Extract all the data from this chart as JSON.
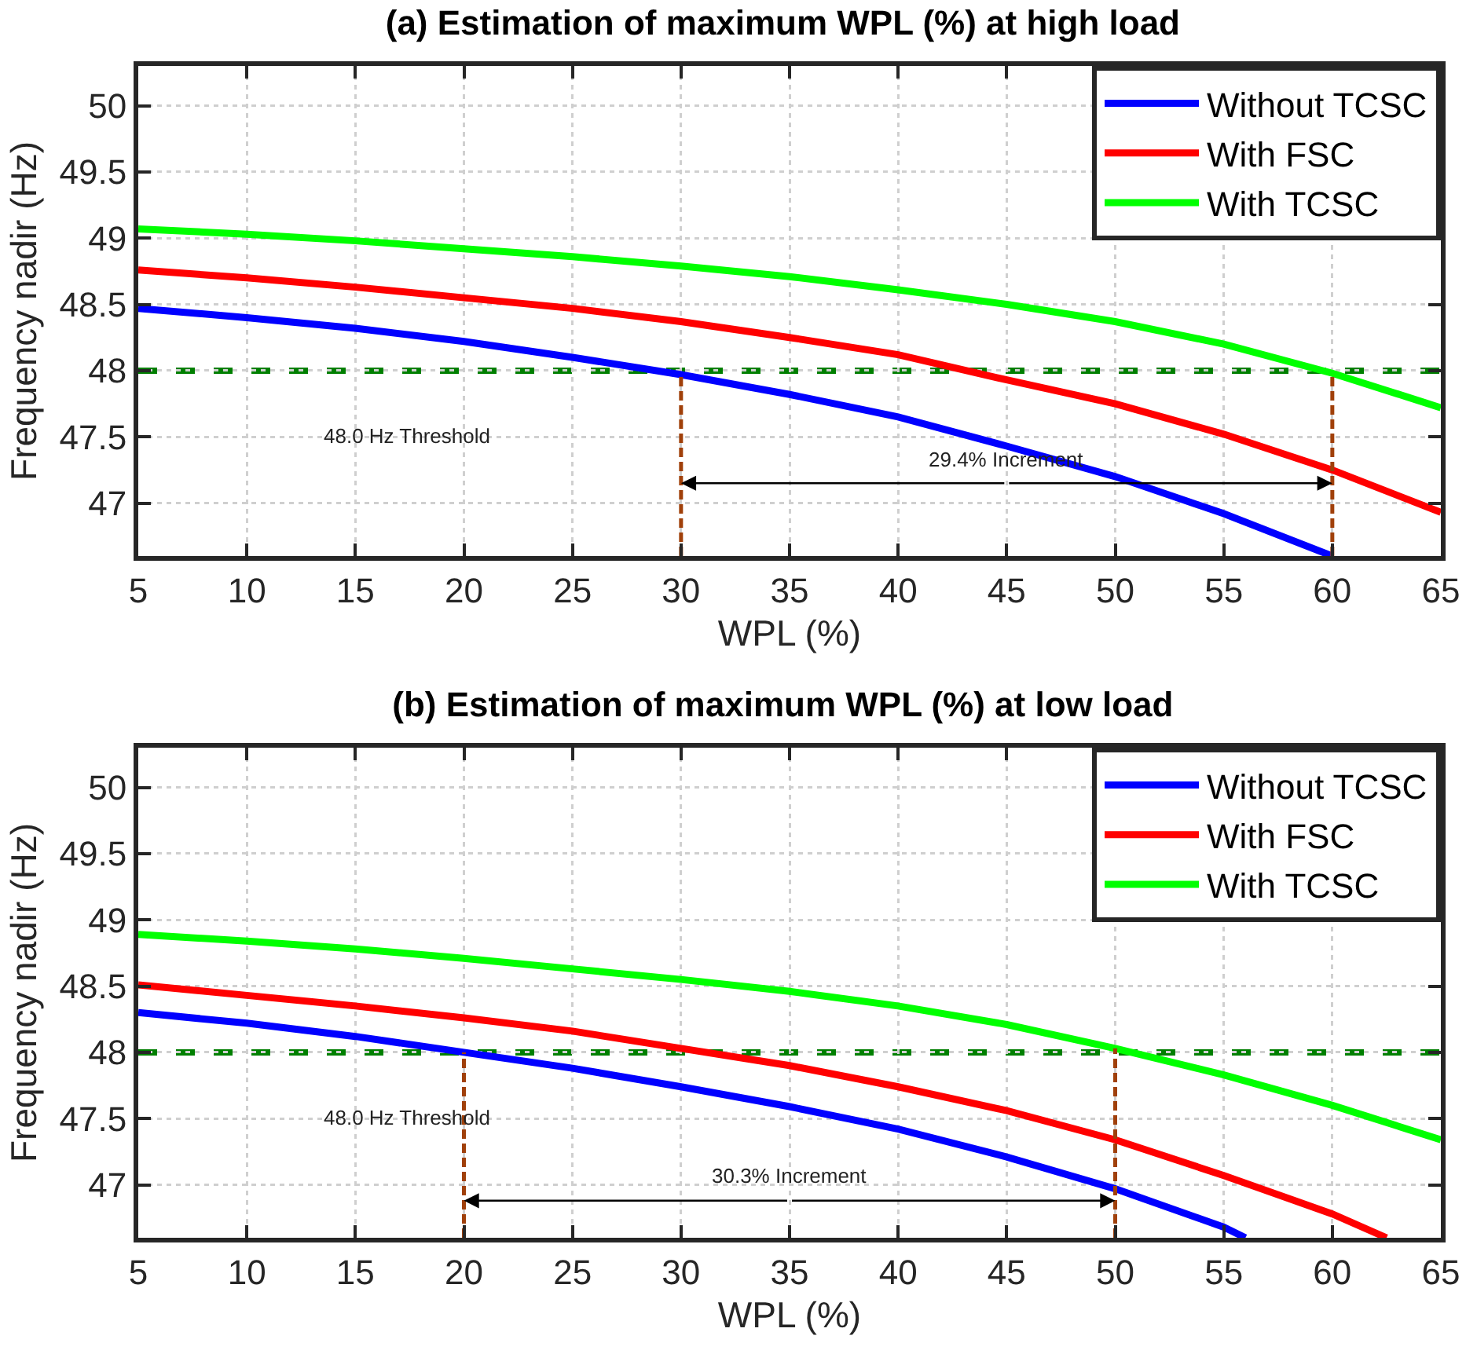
{
  "chart_data": [
    {
      "type": "line",
      "title": "(a) Estimation of maximum WPL (%) at high load",
      "xlabel": "WPL (%)",
      "ylabel": "Frequency nadir (Hz)",
      "x": [
        5,
        10,
        15,
        20,
        25,
        30,
        35,
        40,
        45,
        50,
        55,
        60,
        65
      ],
      "series": [
        {
          "name": "Without TCSC",
          "color": "#0000ff",
          "values": [
            48.47,
            48.4,
            48.32,
            48.22,
            48.1,
            47.97,
            47.82,
            47.65,
            47.43,
            47.2,
            46.92,
            46.6,
            null
          ]
        },
        {
          "name": "With FSC",
          "color": "#ff0000",
          "values": [
            48.76,
            48.7,
            48.63,
            48.55,
            48.47,
            48.37,
            48.25,
            48.12,
            47.93,
            47.75,
            47.52,
            47.25,
            46.93
          ]
        },
        {
          "name": "With TCSC",
          "color": "#00ff00",
          "values": [
            49.07,
            49.03,
            48.98,
            48.92,
            48.86,
            48.79,
            48.71,
            48.61,
            48.5,
            48.37,
            48.2,
            47.98,
            47.72
          ]
        },
        {
          "type": "line",
          "color": "#a0400a",
          "line_style": "dashed",
          "x": [
            30,
            30
          ],
          "values": [
            46.6,
            47.97
          ]
        },
        {
          "type": "line",
          "color": "#a0400a",
          "line_style": "dashed",
          "x": [
            60,
            60
          ],
          "values": [
            46.6,
            47.98
          ]
        }
      ],
      "ref_lines": [
        {
          "axis": "y",
          "value": 48,
          "color": "#007f00",
          "line_style": "dashed"
        }
      ],
      "annotations": [
        "48.0 Hz Threshold",
        {
          "text": "29.4% Increment",
          "x": 60,
          "y": 47.15
        }
      ],
      "xlim": [
        5,
        65
      ],
      "xticks": [
        5,
        10,
        15,
        20,
        25,
        30,
        35,
        40,
        45,
        50,
        55,
        60,
        65
      ],
      "ylim": [
        46.6,
        50.3
      ],
      "yticks": [
        47,
        47.5,
        48,
        48.5,
        49,
        49.5,
        50
      ],
      "grid": true,
      "legend": "top right",
      "marker": "none",
      "line_style": "solid"
    },
    {
      "type": "line",
      "title": "(b) Estimation of maximum WPL (%) at low load",
      "xlabel": "WPL (%)",
      "ylabel": "Frequency nadir (Hz)",
      "x": [
        5,
        10,
        15,
        20,
        25,
        30,
        35,
        40,
        45,
        50,
        55,
        60,
        65
      ],
      "series": [
        {
          "name": "Without TCSC",
          "color": "#0000ff",
          "x": [
            5,
            10,
            15,
            20,
            25,
            30,
            35,
            40,
            45,
            50,
            55,
            56
          ],
          "values": [
            48.3,
            48.22,
            48.12,
            48.0,
            47.88,
            47.74,
            47.59,
            47.42,
            47.21,
            46.97,
            46.68,
            46.6
          ]
        },
        {
          "name": "With FSC",
          "color": "#ff0000",
          "x": [
            5,
            10,
            15,
            20,
            25,
            30,
            35,
            40,
            45,
            50,
            55,
            60,
            62.5
          ],
          "values": [
            48.51,
            48.43,
            48.35,
            48.26,
            48.16,
            48.03,
            47.9,
            47.74,
            47.56,
            47.34,
            47.07,
            46.78,
            46.6
          ]
        },
        {
          "name": "With TCSC",
          "color": "#00ff00",
          "values": [
            48.89,
            48.84,
            48.78,
            48.71,
            48.63,
            48.55,
            48.46,
            48.35,
            48.21,
            48.03,
            47.83,
            47.6,
            47.34
          ]
        },
        {
          "type": "line",
          "color": "#a0400a",
          "line_style": "dashed",
          "x": [
            20,
            20
          ],
          "values": [
            46.6,
            48.0
          ]
        },
        {
          "type": "line",
          "color": "#a0400a",
          "line_style": "dashed",
          "x": [
            50,
            50
          ],
          "values": [
            46.6,
            48.03
          ]
        }
      ],
      "ref_lines": [
        {
          "axis": "y",
          "value": 48,
          "color": "#007f00",
          "line_style": "dashed"
        }
      ],
      "annotations": [
        "48.0 Hz Threshold",
        {
          "text": "30.3% Increment",
          "x": 50,
          "y": 46.88
        }
      ],
      "xlim": [
        5,
        65
      ],
      "xticks": [
        5,
        10,
        15,
        20,
        25,
        30,
        35,
        40,
        45,
        50,
        55,
        60,
        65
      ],
      "ylim": [
        46.6,
        50.3
      ],
      "yticks": [
        47,
        47.5,
        48,
        48.5,
        49,
        49.5,
        50
      ],
      "grid": true,
      "legend": "top right",
      "marker": "none",
      "line_style": "solid"
    }
  ]
}
